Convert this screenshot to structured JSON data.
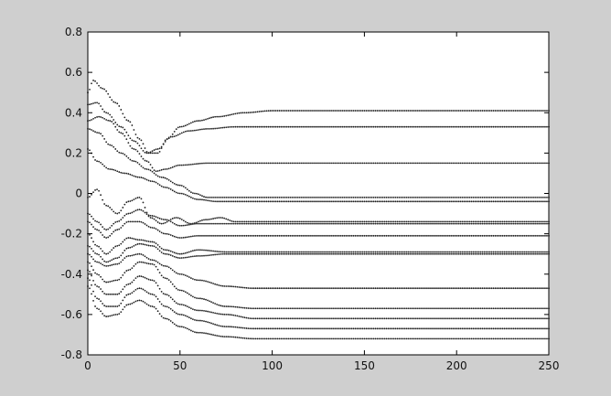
{
  "figure": {
    "background": "#cfcfcf",
    "axes_background": "#ffffff",
    "axis_color": "#000000",
    "marker_color": "#202020"
  },
  "chart_data": {
    "type": "scatter",
    "title": "",
    "xlabel": "",
    "ylabel": "",
    "xlim": [
      0,
      250
    ],
    "ylim": [
      -0.8,
      0.8
    ],
    "xticks": [
      0,
      50,
      100,
      150,
      200,
      250
    ],
    "yticks": [
      -0.8,
      -0.6,
      -0.4,
      -0.2,
      0,
      0.2,
      0.4,
      0.6,
      0.8
    ],
    "grid": false,
    "legend": "none",
    "marker": "dot",
    "series": [
      {
        "final": 0.41,
        "points": [
          [
            0,
            0.5
          ],
          [
            3,
            0.56
          ],
          [
            8,
            0.52
          ],
          [
            15,
            0.45
          ],
          [
            22,
            0.36
          ],
          [
            28,
            0.27
          ],
          [
            33,
            0.2
          ],
          [
            38,
            0.2
          ],
          [
            43,
            0.27
          ],
          [
            50,
            0.33
          ],
          [
            60,
            0.36
          ],
          [
            70,
            0.38
          ],
          [
            85,
            0.4
          ],
          [
            100,
            0.41
          ],
          [
            250,
            0.41
          ]
        ]
      },
      {
        "final": 0.33,
        "points": [
          [
            0,
            0.44
          ],
          [
            5,
            0.45
          ],
          [
            10,
            0.4
          ],
          [
            18,
            0.33
          ],
          [
            25,
            0.26
          ],
          [
            32,
            0.2
          ],
          [
            38,
            0.22
          ],
          [
            45,
            0.28
          ],
          [
            55,
            0.31
          ],
          [
            65,
            0.32
          ],
          [
            80,
            0.33
          ],
          [
            100,
            0.33
          ],
          [
            250,
            0.33
          ]
        ]
      },
      {
        "final": 0.15,
        "points": [
          [
            0,
            0.36
          ],
          [
            6,
            0.38
          ],
          [
            12,
            0.36
          ],
          [
            18,
            0.3
          ],
          [
            25,
            0.22
          ],
          [
            32,
            0.16
          ],
          [
            37,
            0.11
          ],
          [
            42,
            0.12
          ],
          [
            50,
            0.14
          ],
          [
            65,
            0.15
          ],
          [
            85,
            0.15
          ],
          [
            250,
            0.15
          ]
        ]
      },
      {
        "final": -0.02,
        "points": [
          [
            0,
            0.32
          ],
          [
            6,
            0.3
          ],
          [
            12,
            0.24
          ],
          [
            18,
            0.2
          ],
          [
            25,
            0.16
          ],
          [
            32,
            0.12
          ],
          [
            40,
            0.08
          ],
          [
            50,
            0.04
          ],
          [
            58,
            0.0
          ],
          [
            65,
            -0.02
          ],
          [
            80,
            -0.02
          ],
          [
            250,
            -0.02
          ]
        ]
      },
      {
        "final": -0.04,
        "points": [
          [
            0,
            0.22
          ],
          [
            5,
            0.16
          ],
          [
            12,
            0.12
          ],
          [
            20,
            0.1
          ],
          [
            28,
            0.08
          ],
          [
            35,
            0.06
          ],
          [
            42,
            0.03
          ],
          [
            50,
            0.0
          ],
          [
            60,
            -0.03
          ],
          [
            70,
            -0.04
          ],
          [
            90,
            -0.04
          ],
          [
            250,
            -0.04
          ]
        ]
      },
      {
        "final": -0.14,
        "points": [
          [
            0,
            -0.02
          ],
          [
            5,
            0.02
          ],
          [
            10,
            -0.06
          ],
          [
            16,
            -0.1
          ],
          [
            22,
            -0.04
          ],
          [
            28,
            -0.02
          ],
          [
            34,
            -0.12
          ],
          [
            40,
            -0.15
          ],
          [
            48,
            -0.12
          ],
          [
            56,
            -0.15
          ],
          [
            64,
            -0.13
          ],
          [
            72,
            -0.12
          ],
          [
            80,
            -0.14
          ],
          [
            100,
            -0.14
          ],
          [
            250,
            -0.14
          ]
        ]
      },
      {
        "final": -0.15,
        "points": [
          [
            0,
            -0.1
          ],
          [
            5,
            -0.14
          ],
          [
            10,
            -0.18
          ],
          [
            16,
            -0.14
          ],
          [
            22,
            -0.1
          ],
          [
            28,
            -0.08
          ],
          [
            34,
            -0.11
          ],
          [
            42,
            -0.13
          ],
          [
            50,
            -0.16
          ],
          [
            60,
            -0.15
          ],
          [
            72,
            -0.15
          ],
          [
            90,
            -0.15
          ],
          [
            250,
            -0.15
          ]
        ]
      },
      {
        "final": -0.21,
        "points": [
          [
            0,
            -0.14
          ],
          [
            5,
            -0.18
          ],
          [
            10,
            -0.22
          ],
          [
            16,
            -0.18
          ],
          [
            22,
            -0.14
          ],
          [
            28,
            -0.14
          ],
          [
            35,
            -0.17
          ],
          [
            42,
            -0.2
          ],
          [
            50,
            -0.22
          ],
          [
            60,
            -0.21
          ],
          [
            75,
            -0.21
          ],
          [
            250,
            -0.21
          ]
        ]
      },
      {
        "final": -0.29,
        "points": [
          [
            0,
            -0.2
          ],
          [
            5,
            -0.26
          ],
          [
            10,
            -0.3
          ],
          [
            16,
            -0.26
          ],
          [
            22,
            -0.22
          ],
          [
            28,
            -0.23
          ],
          [
            35,
            -0.24
          ],
          [
            42,
            -0.28
          ],
          [
            50,
            -0.3
          ],
          [
            60,
            -0.28
          ],
          [
            75,
            -0.29
          ],
          [
            250,
            -0.29
          ]
        ]
      },
      {
        "final": -0.3,
        "points": [
          [
            0,
            -0.26
          ],
          [
            5,
            -0.3
          ],
          [
            10,
            -0.34
          ],
          [
            16,
            -0.32
          ],
          [
            22,
            -0.27
          ],
          [
            28,
            -0.25
          ],
          [
            35,
            -0.26
          ],
          [
            42,
            -0.3
          ],
          [
            50,
            -0.32
          ],
          [
            60,
            -0.31
          ],
          [
            75,
            -0.3
          ],
          [
            250,
            -0.3
          ]
        ]
      },
      {
        "final": -0.47,
        "points": [
          [
            0,
            -0.3
          ],
          [
            5,
            -0.34
          ],
          [
            10,
            -0.36
          ],
          [
            16,
            -0.35
          ],
          [
            22,
            -0.31
          ],
          [
            28,
            -0.3
          ],
          [
            35,
            -0.33
          ],
          [
            42,
            -0.36
          ],
          [
            50,
            -0.4
          ],
          [
            60,
            -0.43
          ],
          [
            75,
            -0.46
          ],
          [
            90,
            -0.47
          ],
          [
            250,
            -0.47
          ]
        ]
      },
      {
        "final": -0.57,
        "points": [
          [
            0,
            -0.34
          ],
          [
            5,
            -0.4
          ],
          [
            10,
            -0.44
          ],
          [
            16,
            -0.43
          ],
          [
            22,
            -0.38
          ],
          [
            28,
            -0.34
          ],
          [
            35,
            -0.35
          ],
          [
            42,
            -0.42
          ],
          [
            50,
            -0.48
          ],
          [
            60,
            -0.52
          ],
          [
            75,
            -0.56
          ],
          [
            90,
            -0.57
          ],
          [
            250,
            -0.57
          ]
        ]
      },
      {
        "final": -0.62,
        "points": [
          [
            0,
            -0.38
          ],
          [
            5,
            -0.46
          ],
          [
            10,
            -0.5
          ],
          [
            16,
            -0.5
          ],
          [
            22,
            -0.45
          ],
          [
            28,
            -0.41
          ],
          [
            35,
            -0.43
          ],
          [
            42,
            -0.5
          ],
          [
            50,
            -0.55
          ],
          [
            60,
            -0.58
          ],
          [
            75,
            -0.6
          ],
          [
            90,
            -0.62
          ],
          [
            250,
            -0.62
          ]
        ]
      },
      {
        "final": -0.67,
        "points": [
          [
            0,
            -0.42
          ],
          [
            5,
            -0.52
          ],
          [
            10,
            -0.56
          ],
          [
            16,
            -0.56
          ],
          [
            22,
            -0.5
          ],
          [
            28,
            -0.47
          ],
          [
            35,
            -0.5
          ],
          [
            42,
            -0.56
          ],
          [
            50,
            -0.6
          ],
          [
            60,
            -0.63
          ],
          [
            75,
            -0.66
          ],
          [
            90,
            -0.67
          ],
          [
            250,
            -0.67
          ]
        ]
      },
      {
        "final": -0.72,
        "points": [
          [
            0,
            -0.46
          ],
          [
            5,
            -0.57
          ],
          [
            10,
            -0.61
          ],
          [
            16,
            -0.6
          ],
          [
            22,
            -0.55
          ],
          [
            28,
            -0.53
          ],
          [
            35,
            -0.56
          ],
          [
            42,
            -0.62
          ],
          [
            50,
            -0.66
          ],
          [
            60,
            -0.69
          ],
          [
            75,
            -0.71
          ],
          [
            90,
            -0.72
          ],
          [
            250,
            -0.72
          ]
        ]
      }
    ]
  }
}
